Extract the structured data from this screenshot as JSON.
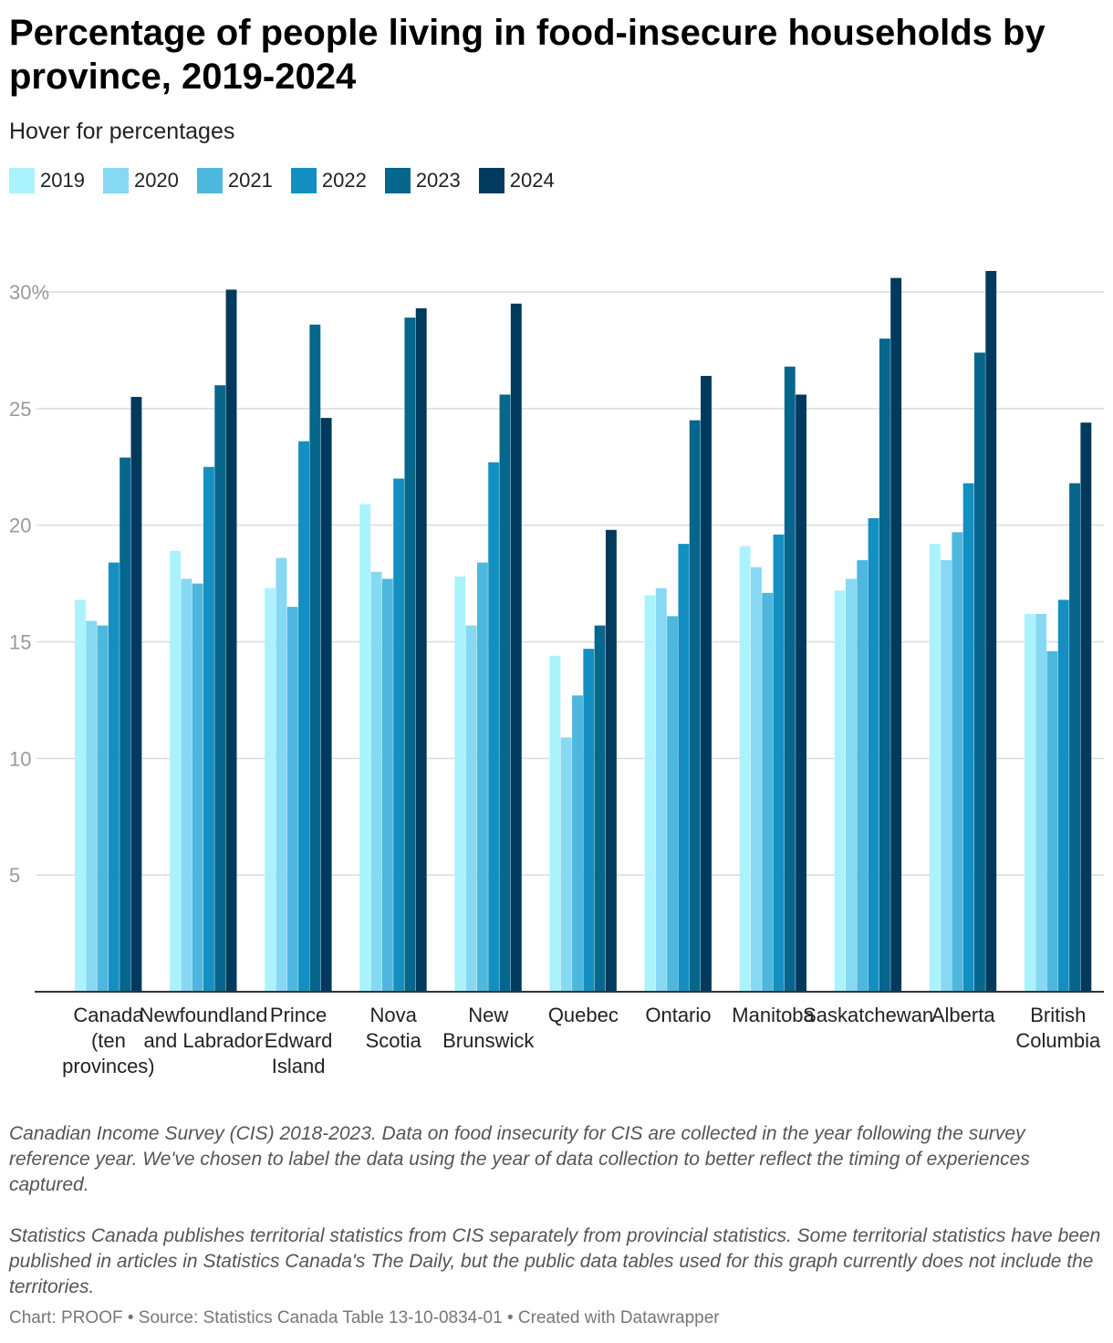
{
  "title": "Percentage of people living in food-insecure households by province, 2019-2024",
  "subtitle": "Hover for percentages",
  "notes": [
    "Canadian Income Survey (CIS) 2018-2023. Data on food insecurity for CIS are collected in the year following the survey reference year. We've chosen to label the data using the year of data collection to better reflect the timing of experiences captured.",
    "Statistics Canada publishes territorial statistics from CIS separately from provincial statistics. Some territorial statistics have been published in articles in Statistics Canada's The Daily, but the public data tables used for this graph currently does not include the territories."
  ],
  "footer": "Chart: PROOF • Source: Statistics Canada Table 13-10-0834-01 • Created with Datawrapper",
  "chart_data": {
    "type": "bar",
    "ylim": [
      0,
      30
    ],
    "yticks": [
      5,
      10,
      15,
      20,
      25,
      30
    ],
    "ytick_labels": [
      "5",
      "10",
      "15",
      "20",
      "25",
      "30%"
    ],
    "grid": true,
    "legend_position": "top-left",
    "categories": [
      [
        "Canada",
        "(ten",
        "provinces)"
      ],
      [
        "Newfoundland",
        "and Labrador"
      ],
      [
        "Prince",
        "Edward",
        "Island"
      ],
      [
        "Nova",
        "Scotia"
      ],
      [
        "New",
        "Brunswick"
      ],
      [
        "Quebec"
      ],
      [
        "Ontario"
      ],
      [
        "Manitoba"
      ],
      [
        "Saskatchewan"
      ],
      [
        "Alberta"
      ],
      [
        "British",
        "Columbia"
      ]
    ],
    "series": [
      {
        "name": "2019",
        "color": "#aaf3fc",
        "values": [
          16.8,
          18.9,
          17.3,
          20.9,
          17.8,
          14.4,
          17.0,
          19.1,
          17.2,
          19.2,
          16.2
        ]
      },
      {
        "name": "2020",
        "color": "#86d8f3",
        "values": [
          15.9,
          17.7,
          18.6,
          18.0,
          15.7,
          10.9,
          17.3,
          18.2,
          17.7,
          18.5,
          16.2
        ]
      },
      {
        "name": "2021",
        "color": "#4eb7dd",
        "values": [
          15.7,
          17.5,
          16.5,
          17.7,
          18.4,
          12.7,
          16.1,
          17.1,
          18.5,
          19.7,
          14.6
        ]
      },
      {
        "name": "2022",
        "color": "#1390c1",
        "values": [
          18.4,
          22.5,
          23.6,
          22.0,
          22.7,
          14.7,
          19.2,
          19.6,
          20.3,
          21.8,
          16.8
        ]
      },
      {
        "name": "2023",
        "color": "#06668c",
        "values": [
          22.9,
          26.0,
          28.6,
          28.9,
          25.6,
          15.7,
          24.5,
          26.8,
          28.0,
          27.4,
          21.8
        ]
      },
      {
        "name": "2024",
        "color": "#023a5e",
        "values": [
          25.5,
          30.1,
          24.6,
          29.3,
          29.5,
          19.8,
          26.4,
          25.6,
          30.6,
          30.9,
          24.4
        ]
      }
    ]
  }
}
